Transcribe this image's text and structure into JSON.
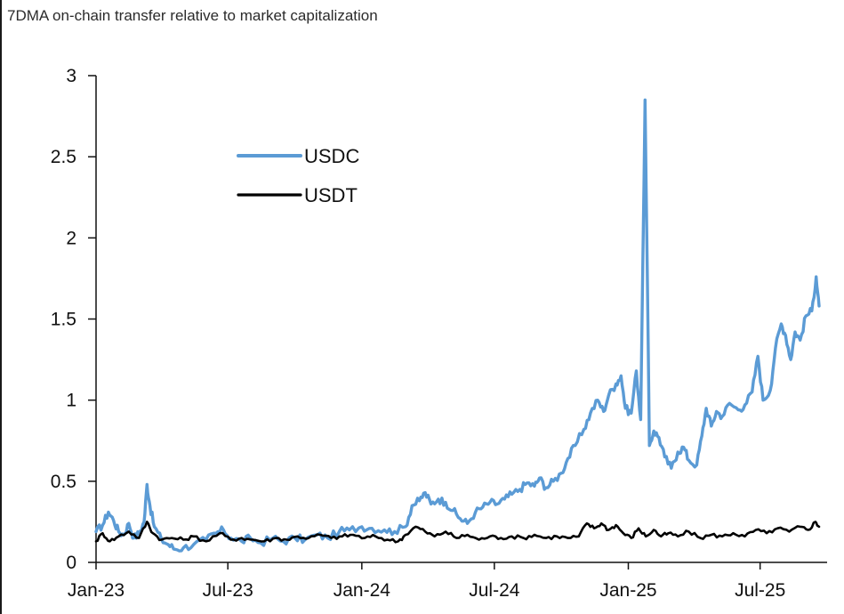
{
  "chart_data": {
    "type": "line",
    "title": "7DMA on-chain transfer relative to market capitalization",
    "xlabel": "",
    "ylabel": "",
    "x_ticks": [
      "Jan-23",
      "Jul-23",
      "Jan-24",
      "Jul-24",
      "Jan-25",
      "Jul-25"
    ],
    "y_ticks": [
      "0",
      "0.5",
      "1",
      "1.5",
      "2",
      "2.5",
      "3"
    ],
    "ylim": [
      0,
      3
    ],
    "xlim": [
      "2023-01",
      "2025-10"
    ],
    "grid": false,
    "legend_position": "top-left",
    "series": [
      {
        "name": "USDC",
        "color": "#5b9bd5",
        "points": [
          [
            "2023-01-01",
            0.19
          ],
          [
            "2023-01-10",
            0.23
          ],
          [
            "2023-01-18",
            0.31
          ],
          [
            "2023-01-25",
            0.26
          ],
          [
            "2023-02-01",
            0.19
          ],
          [
            "2023-02-08",
            0.17
          ],
          [
            "2023-02-15",
            0.24
          ],
          [
            "2023-02-22",
            0.15
          ],
          [
            "2023-03-01",
            0.18
          ],
          [
            "2023-03-08",
            0.25
          ],
          [
            "2023-03-12",
            0.48
          ],
          [
            "2023-03-16",
            0.35
          ],
          [
            "2023-03-22",
            0.22
          ],
          [
            "2023-04-01",
            0.14
          ],
          [
            "2023-04-10",
            0.11
          ],
          [
            "2023-04-20",
            0.08
          ],
          [
            "2023-05-01",
            0.09
          ],
          [
            "2023-05-15",
            0.11
          ],
          [
            "2023-06-01",
            0.14
          ],
          [
            "2023-06-15",
            0.18
          ],
          [
            "2023-06-25",
            0.2
          ],
          [
            "2023-07-05",
            0.15
          ],
          [
            "2023-07-20",
            0.13
          ],
          [
            "2023-08-01",
            0.15
          ],
          [
            "2023-08-15",
            0.12
          ],
          [
            "2023-09-01",
            0.15
          ],
          [
            "2023-09-15",
            0.13
          ],
          [
            "2023-10-01",
            0.15
          ],
          [
            "2023-10-15",
            0.14
          ],
          [
            "2023-11-01",
            0.17
          ],
          [
            "2023-11-15",
            0.15
          ],
          [
            "2023-12-01",
            0.19
          ],
          [
            "2023-12-15",
            0.2
          ],
          [
            "2024-01-01",
            0.22
          ],
          [
            "2024-01-15",
            0.21
          ],
          [
            "2024-02-01",
            0.2
          ],
          [
            "2024-02-15",
            0.19
          ],
          [
            "2024-03-01",
            0.22
          ],
          [
            "2024-03-10",
            0.35
          ],
          [
            "2024-03-20",
            0.38
          ],
          [
            "2024-03-28",
            0.43
          ],
          [
            "2024-04-05",
            0.36
          ],
          [
            "2024-04-15",
            0.39
          ],
          [
            "2024-04-25",
            0.37
          ],
          [
            "2024-05-05",
            0.32
          ],
          [
            "2024-05-15",
            0.27
          ],
          [
            "2024-05-25",
            0.24
          ],
          [
            "2024-06-05",
            0.31
          ],
          [
            "2024-06-15",
            0.34
          ],
          [
            "2024-06-25",
            0.37
          ],
          [
            "2024-07-05",
            0.36
          ],
          [
            "2024-07-15",
            0.39
          ],
          [
            "2024-07-25",
            0.42
          ],
          [
            "2024-08-05",
            0.45
          ],
          [
            "2024-08-15",
            0.49
          ],
          [
            "2024-08-25",
            0.47
          ],
          [
            "2024-09-01",
            0.52
          ],
          [
            "2024-09-10",
            0.46
          ],
          [
            "2024-09-20",
            0.5
          ],
          [
            "2024-10-01",
            0.55
          ],
          [
            "2024-10-10",
            0.64
          ],
          [
            "2024-10-20",
            0.72
          ],
          [
            "2024-11-01",
            0.82
          ],
          [
            "2024-11-10",
            0.92
          ],
          [
            "2024-11-20",
            1.0
          ],
          [
            "2024-11-28",
            0.93
          ],
          [
            "2024-12-05",
            1.03
          ],
          [
            "2024-12-15",
            1.1
          ],
          [
            "2024-12-22",
            1.15
          ],
          [
            "2024-12-28",
            0.95
          ],
          [
            "2025-01-05",
            0.92
          ],
          [
            "2025-01-12",
            1.18
          ],
          [
            "2025-01-18",
            0.88
          ],
          [
            "2025-01-24",
            2.85
          ],
          [
            "2025-01-30",
            0.72
          ],
          [
            "2025-02-05",
            0.81
          ],
          [
            "2025-02-12",
            0.77
          ],
          [
            "2025-02-20",
            0.65
          ],
          [
            "2025-03-01",
            0.58
          ],
          [
            "2025-03-10",
            0.68
          ],
          [
            "2025-03-18",
            0.71
          ],
          [
            "2025-03-25",
            0.63
          ],
          [
            "2025-04-05",
            0.6
          ],
          [
            "2025-04-12",
            0.78
          ],
          [
            "2025-04-18",
            0.95
          ],
          [
            "2025-04-25",
            0.84
          ],
          [
            "2025-05-02",
            0.93
          ],
          [
            "2025-05-10",
            0.9
          ],
          [
            "2025-05-20",
            0.98
          ],
          [
            "2025-06-01",
            0.94
          ],
          [
            "2025-06-10",
            0.97
          ],
          [
            "2025-06-20",
            1.05
          ],
          [
            "2025-06-28",
            1.27
          ],
          [
            "2025-07-05",
            1.0
          ],
          [
            "2025-07-15",
            1.06
          ],
          [
            "2025-07-22",
            1.32
          ],
          [
            "2025-07-30",
            1.47
          ],
          [
            "2025-08-05",
            1.4
          ],
          [
            "2025-08-12",
            1.25
          ],
          [
            "2025-08-18",
            1.42
          ],
          [
            "2025-08-25",
            1.37
          ],
          [
            "2025-09-02",
            1.52
          ],
          [
            "2025-09-10",
            1.55
          ],
          [
            "2025-09-16",
            1.76
          ],
          [
            "2025-09-20",
            1.58
          ]
        ]
      },
      {
        "name": "USDT",
        "color": "#000000",
        "points": [
          [
            "2023-01-01",
            0.13
          ],
          [
            "2023-01-10",
            0.18
          ],
          [
            "2023-01-20",
            0.13
          ],
          [
            "2023-02-01",
            0.16
          ],
          [
            "2023-02-15",
            0.19
          ],
          [
            "2023-03-01",
            0.15
          ],
          [
            "2023-03-12",
            0.25
          ],
          [
            "2023-03-20",
            0.18
          ],
          [
            "2023-04-01",
            0.14
          ],
          [
            "2023-04-15",
            0.15
          ],
          [
            "2023-05-01",
            0.14
          ],
          [
            "2023-05-15",
            0.16
          ],
          [
            "2023-06-01",
            0.13
          ],
          [
            "2023-06-20",
            0.18
          ],
          [
            "2023-07-05",
            0.14
          ],
          [
            "2023-07-20",
            0.15
          ],
          [
            "2023-08-05",
            0.14
          ],
          [
            "2023-08-20",
            0.13
          ],
          [
            "2023-09-05",
            0.15
          ],
          [
            "2023-09-20",
            0.14
          ],
          [
            "2023-10-05",
            0.16
          ],
          [
            "2023-10-20",
            0.15
          ],
          [
            "2023-11-05",
            0.17
          ],
          [
            "2023-11-20",
            0.15
          ],
          [
            "2023-12-05",
            0.16
          ],
          [
            "2023-12-20",
            0.17
          ],
          [
            "2024-01-05",
            0.15
          ],
          [
            "2024-01-20",
            0.16
          ],
          [
            "2024-02-05",
            0.14
          ],
          [
            "2024-02-20",
            0.13
          ],
          [
            "2024-03-01",
            0.17
          ],
          [
            "2024-03-15",
            0.22
          ],
          [
            "2024-03-28",
            0.19
          ],
          [
            "2024-04-10",
            0.16
          ],
          [
            "2024-04-25",
            0.19
          ],
          [
            "2024-05-10",
            0.15
          ],
          [
            "2024-05-25",
            0.17
          ],
          [
            "2024-06-10",
            0.14
          ],
          [
            "2024-06-25",
            0.16
          ],
          [
            "2024-07-10",
            0.15
          ],
          [
            "2024-07-25",
            0.16
          ],
          [
            "2024-08-10",
            0.15
          ],
          [
            "2024-08-25",
            0.17
          ],
          [
            "2024-09-10",
            0.15
          ],
          [
            "2024-09-25",
            0.16
          ],
          [
            "2024-10-10",
            0.15
          ],
          [
            "2024-10-25",
            0.16
          ],
          [
            "2024-11-05",
            0.24
          ],
          [
            "2024-11-15",
            0.21
          ],
          [
            "2024-11-25",
            0.24
          ],
          [
            "2024-12-05",
            0.2
          ],
          [
            "2024-12-15",
            0.23
          ],
          [
            "2024-12-25",
            0.18
          ],
          [
            "2025-01-05",
            0.15
          ],
          [
            "2025-01-15",
            0.21
          ],
          [
            "2025-01-25",
            0.16
          ],
          [
            "2025-02-05",
            0.2
          ],
          [
            "2025-02-15",
            0.16
          ],
          [
            "2025-02-25",
            0.18
          ],
          [
            "2025-03-10",
            0.16
          ],
          [
            "2025-03-25",
            0.19
          ],
          [
            "2025-04-10",
            0.15
          ],
          [
            "2025-04-25",
            0.17
          ],
          [
            "2025-05-10",
            0.16
          ],
          [
            "2025-05-25",
            0.18
          ],
          [
            "2025-06-10",
            0.16
          ],
          [
            "2025-06-25",
            0.2
          ],
          [
            "2025-07-10",
            0.18
          ],
          [
            "2025-07-25",
            0.21
          ],
          [
            "2025-08-10",
            0.19
          ],
          [
            "2025-08-25",
            0.22
          ],
          [
            "2025-09-05",
            0.2
          ],
          [
            "2025-09-15",
            0.25
          ],
          [
            "2025-09-20",
            0.22
          ]
        ]
      }
    ]
  }
}
